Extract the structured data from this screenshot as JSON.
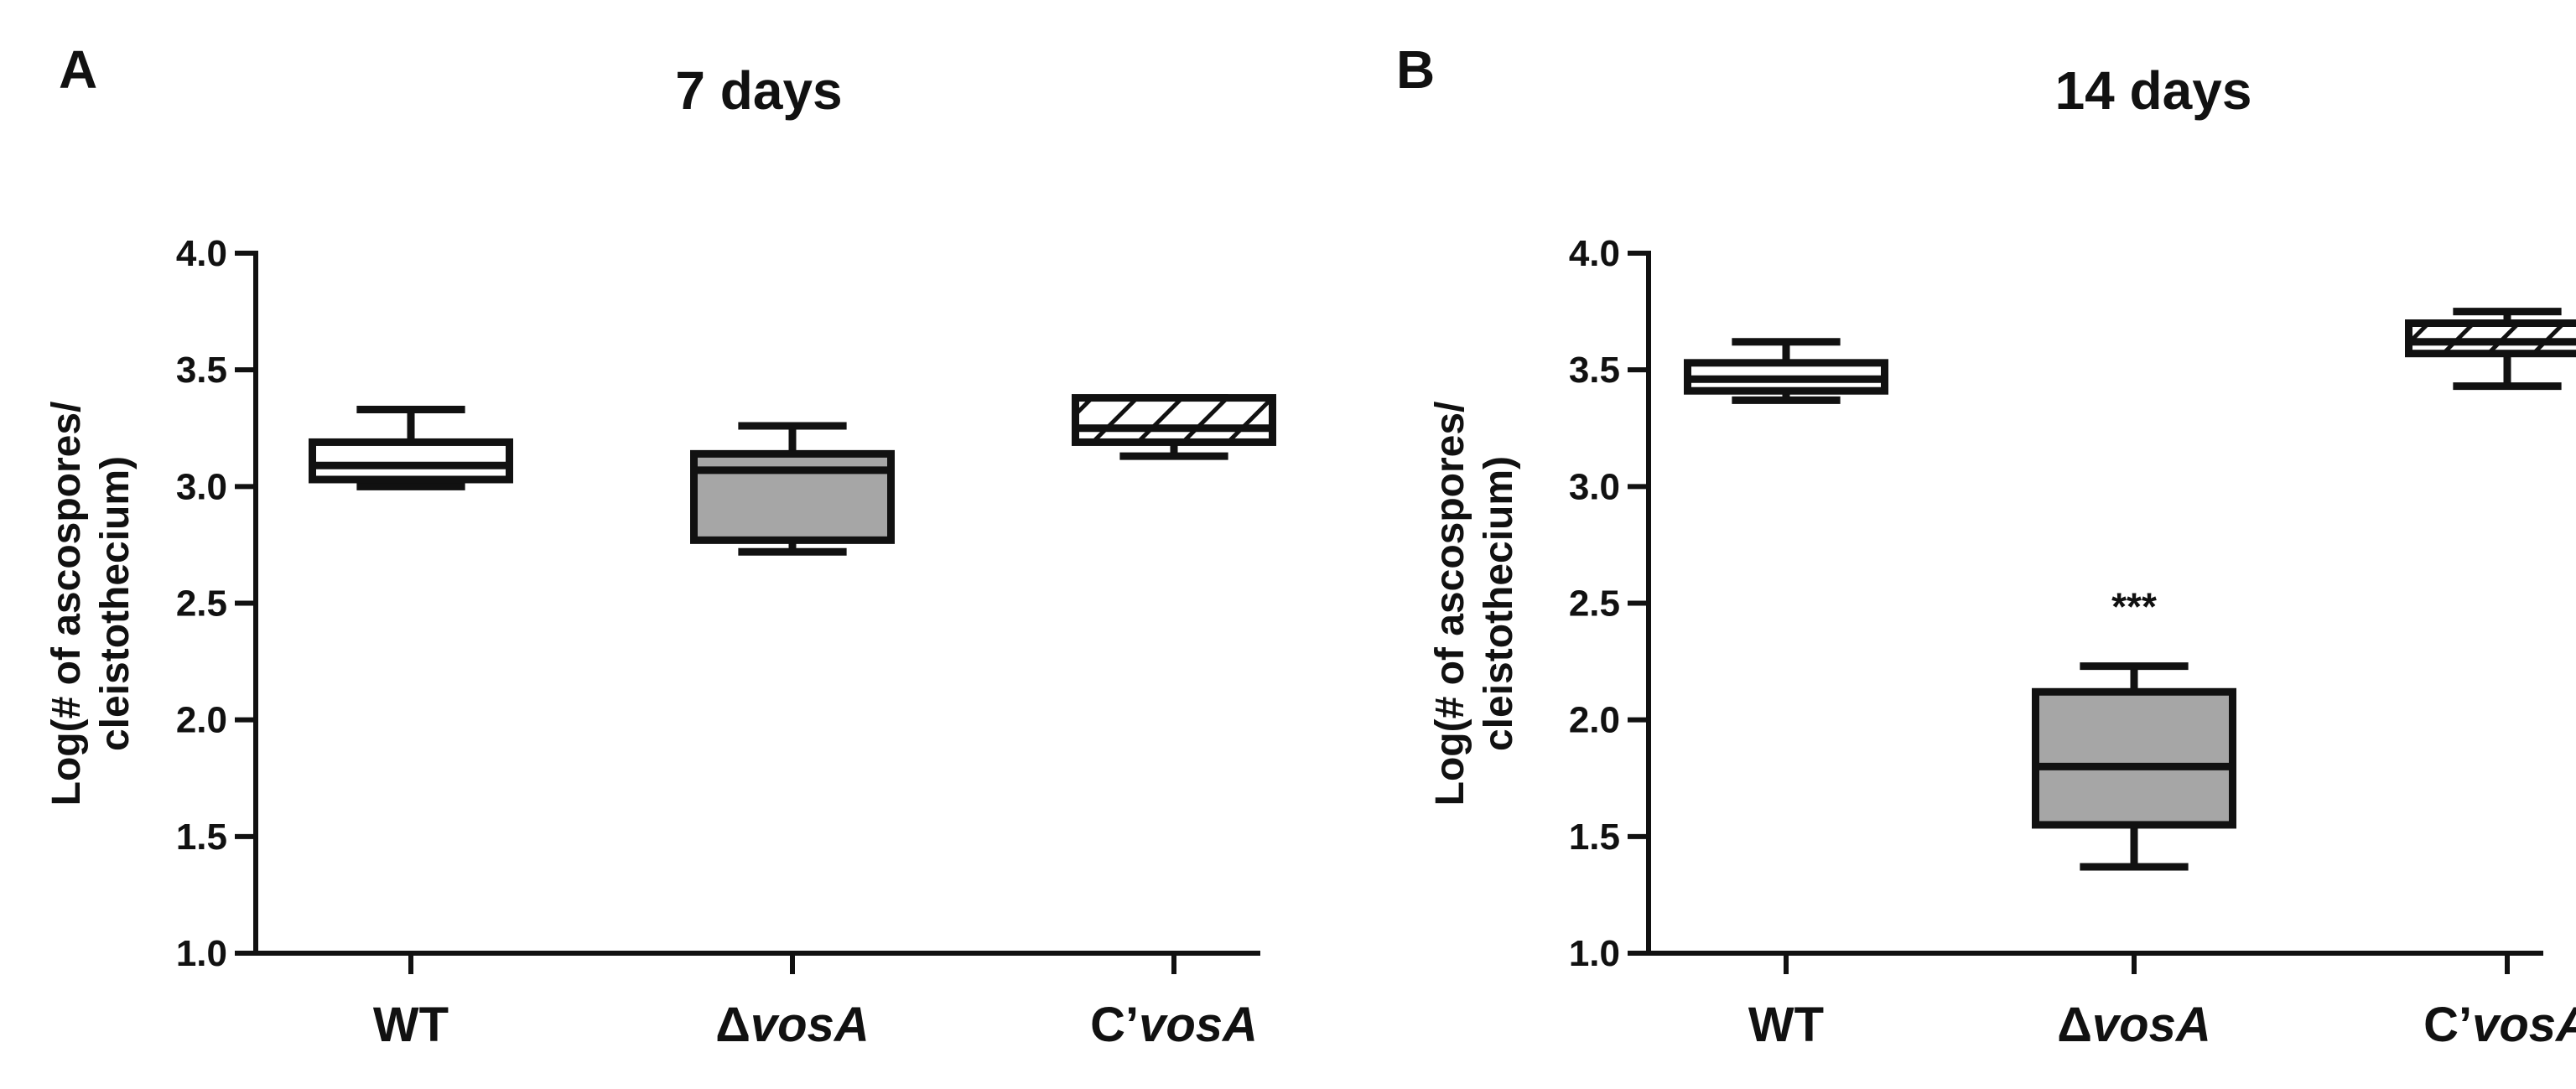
{
  "chart_data": [
    {
      "type": "box",
      "panel_label": "A",
      "title": "7 days",
      "ylabel_lines": [
        "Log(# of ascospores/",
        "cleistothecium)"
      ],
      "ylim": [
        1.0,
        4.0
      ],
      "yticks": [
        "1.0",
        "1.5",
        "2.0",
        "2.5",
        "3.0",
        "3.5",
        "4.0"
      ],
      "categories": [
        {
          "prefix": "",
          "italic": "",
          "plain": "WT"
        },
        {
          "prefix": "Δ",
          "italic": "vosA",
          "plain": ""
        },
        {
          "prefix": "C’",
          "italic": "vosA",
          "plain": ""
        }
      ],
      "boxes": [
        {
          "category": "WT",
          "min": 3.0,
          "q1": 3.03,
          "median": 3.09,
          "q3": 3.19,
          "max": 3.33,
          "fill": "white",
          "annotation": ""
        },
        {
          "category": "ΔvosA",
          "min": 2.72,
          "q1": 2.77,
          "median": 3.07,
          "q3": 3.14,
          "max": 3.26,
          "fill": "gray",
          "annotation": ""
        },
        {
          "category": "C’vosA",
          "min": 3.13,
          "q1": 3.19,
          "median": 3.25,
          "q3": 3.38,
          "max": 3.38,
          "fill": "hatch",
          "annotation": ""
        }
      ]
    },
    {
      "type": "box",
      "panel_label": "B",
      "title": "14 days",
      "ylabel_lines": [
        "Log(# of ascospores/",
        "cleistothecium)"
      ],
      "ylim": [
        1.0,
        4.0
      ],
      "yticks": [
        "1.0",
        "1.5",
        "2.0",
        "2.5",
        "3.0",
        "3.5",
        "4.0"
      ],
      "categories": [
        {
          "prefix": "",
          "italic": "",
          "plain": "WT"
        },
        {
          "prefix": "Δ",
          "italic": "vosA",
          "plain": ""
        },
        {
          "prefix": "C’",
          "italic": "vosA",
          "plain": ""
        }
      ],
      "boxes": [
        {
          "category": "WT",
          "min": 3.37,
          "q1": 3.41,
          "median": 3.46,
          "q3": 3.53,
          "max": 3.62,
          "fill": "white",
          "annotation": ""
        },
        {
          "category": "ΔvosA",
          "min": 1.37,
          "q1": 1.55,
          "median": 1.8,
          "q3": 2.12,
          "max": 2.23,
          "fill": "gray",
          "annotation": "***"
        },
        {
          "category": "C’vosA",
          "min": 3.43,
          "q1": 3.57,
          "median": 3.62,
          "q3": 3.7,
          "max": 3.75,
          "fill": "hatch",
          "annotation": ""
        }
      ]
    }
  ],
  "colors": {
    "axis": "#111111",
    "gray_fill": "#a6a6a6",
    "white_fill": "#ffffff",
    "hatch_line": "#111111"
  }
}
